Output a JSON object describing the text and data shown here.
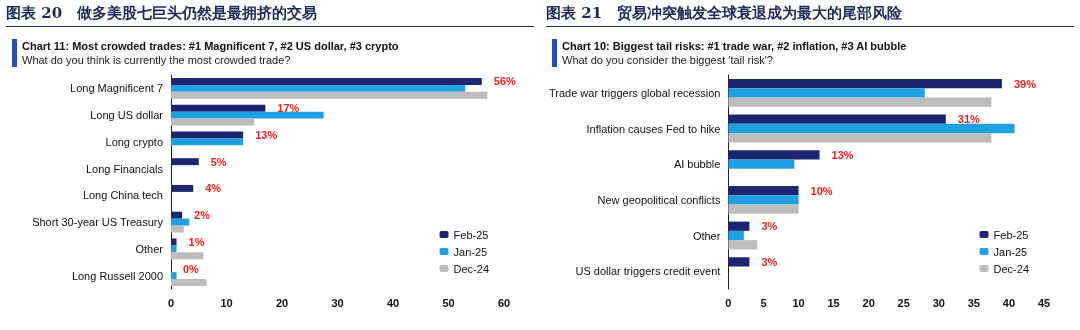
{
  "chart_data": [
    {
      "type": "bar",
      "orientation": "horizontal",
      "title": "图表 20　做多美股七巨头仍然是最拥挤的交易",
      "subtitle": "Chart 11: Most crowded trades: #1 Magnificent 7, #2 US dollar, #3 crypto",
      "annotations": [
        "What do you think is currently the most crowded trade?"
      ],
      "categories": [
        "Long Magnificent 7",
        "Long US dollar",
        "Long crypto",
        "Long Financials",
        "Long China tech",
        "Short 30-year US Treasury",
        "Other",
        "Long Russell 2000"
      ],
      "series": [
        {
          "name": "Feb-25",
          "color": "#1c2670",
          "values": [
            56,
            17,
            13,
            5,
            4,
            2,
            1,
            0
          ],
          "value_labels": [
            "56%",
            "17%",
            "13%",
            "5%",
            "4%",
            "2%",
            "1%",
            "0%"
          ]
        },
        {
          "name": "Jan-25",
          "color": "#1fa0e0",
          "values": [
            53,
            27.5,
            13,
            null,
            null,
            3.3,
            1,
            1
          ]
        },
        {
          "name": "Dec-24",
          "color": "#bdbdbd",
          "values": [
            57,
            15,
            null,
            null,
            null,
            2.3,
            5.8,
            6.4
          ]
        }
      ],
      "xlim": [
        0,
        60
      ],
      "xticks": [
        0,
        10,
        20,
        30,
        40,
        50,
        60
      ],
      "grid": false,
      "legend": "bottom right"
    },
    {
      "type": "bar",
      "orientation": "horizontal",
      "title": "图表 21　贸易冲突触发全球衰退成为最大的尾部风险",
      "subtitle": "Chart 10: Biggest tail risks: #1 trade war, #2 inflation, #3 AI bubble",
      "annotations": [
        "What do you consider the biggest 'tail risk'?"
      ],
      "categories": [
        "Trade war triggers global recession",
        "Inflation causes Fed to hike",
        "AI bubble",
        "New geopolitical conflicts",
        "Other",
        "US dollar triggers credit event"
      ],
      "series": [
        {
          "name": "Feb-25",
          "color": "#1c2670",
          "values": [
            39,
            31,
            13,
            10,
            3,
            3
          ],
          "value_labels": [
            "39%",
            "31%",
            "13%",
            "10%",
            "3%",
            "3%"
          ]
        },
        {
          "name": "Jan-25",
          "color": "#1fa0e0",
          "values": [
            28,
            40.8,
            9.4,
            10,
            2.2,
            null
          ]
        },
        {
          "name": "Dec-24",
          "color": "#bdbdbd",
          "values": [
            37.5,
            37.5,
            null,
            10,
            4.1,
            null
          ]
        }
      ],
      "xlim": [
        0,
        45
      ],
      "xticks": [
        0,
        5,
        10,
        15,
        20,
        25,
        30,
        35,
        40,
        45
      ],
      "grid": false,
      "legend": "bottom right"
    }
  ]
}
